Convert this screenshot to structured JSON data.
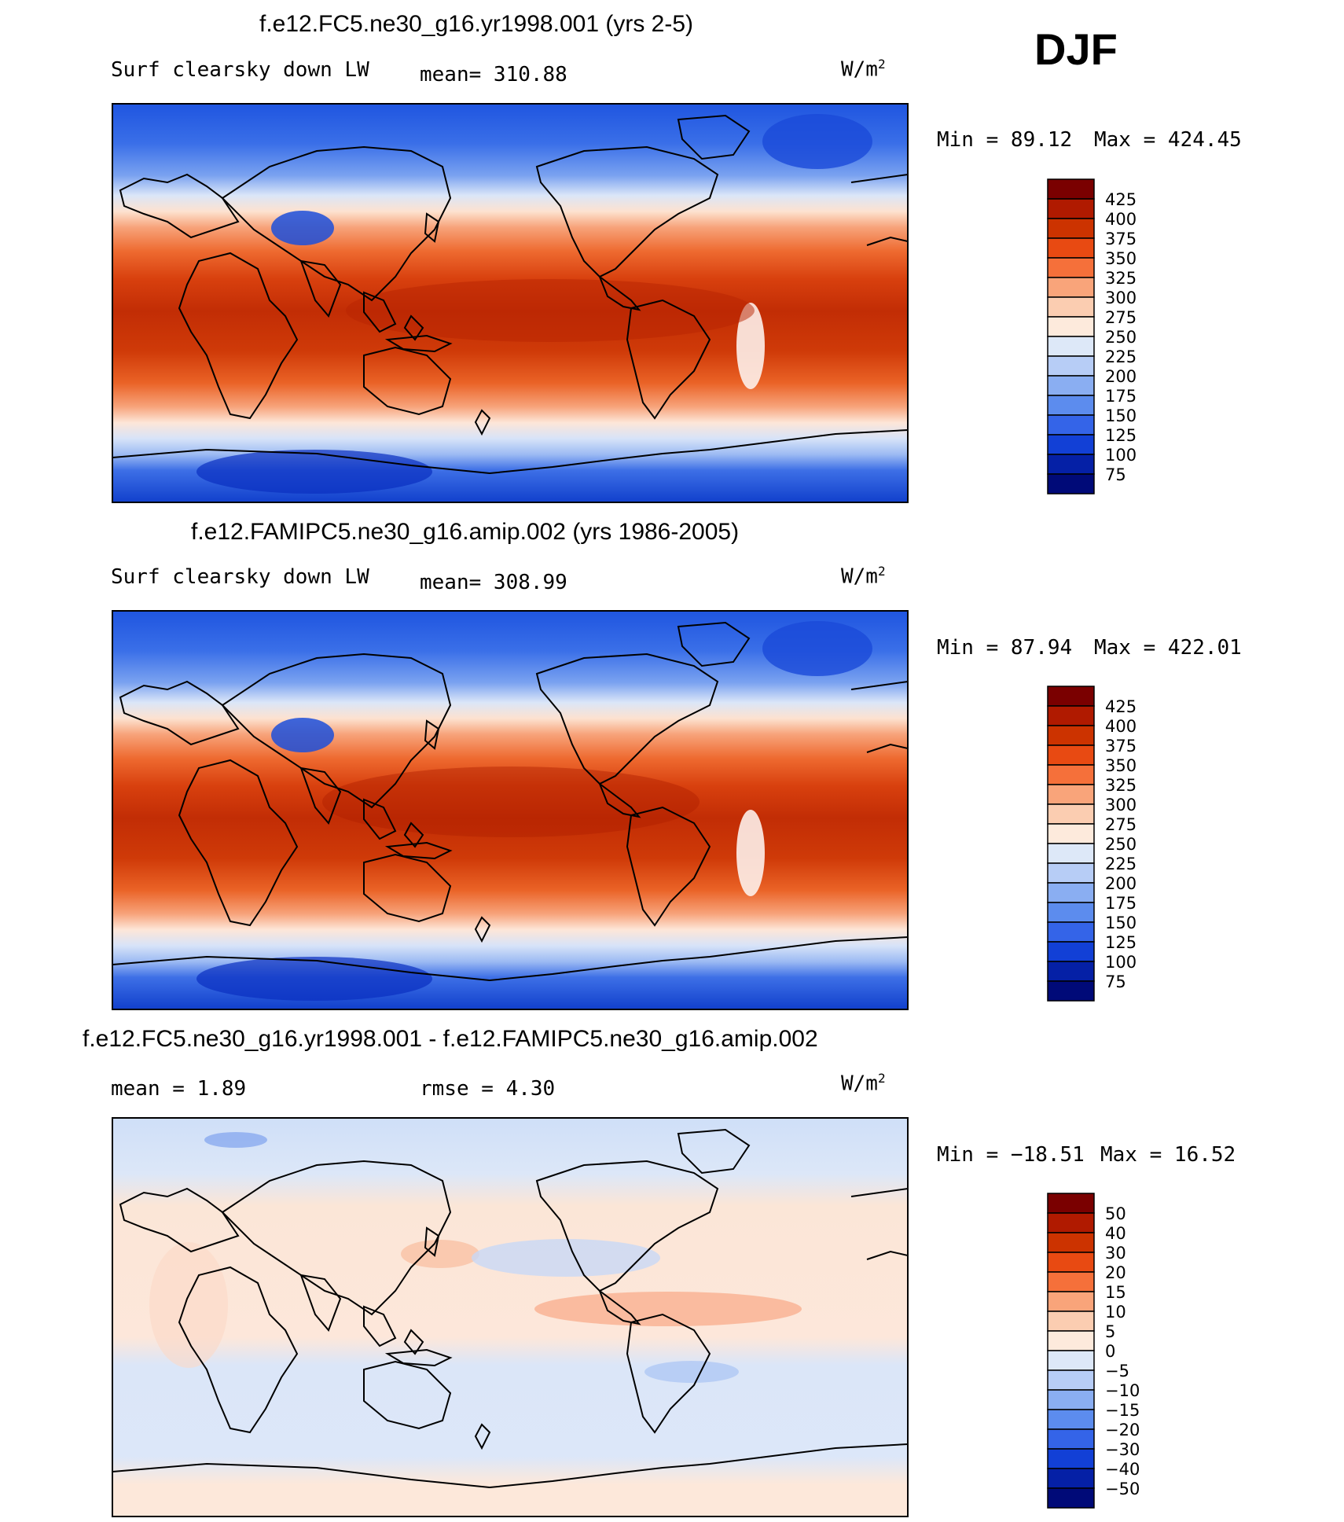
{
  "season": "DJF",
  "panels": [
    {
      "title": "f.e12.FC5.ne30_g16.yr1998.001 (yrs 2-5)",
      "field_label": "Surf clearsky down LW",
      "mean_text": "mean= 310.88",
      "units_base": "W/m",
      "units_exp": "2",
      "min_text": "Min =   89.12",
      "max_text": "Max = 424.45",
      "levels": [
        "425",
        "400",
        "375",
        "350",
        "325",
        "300",
        "275",
        "250",
        "225",
        "200",
        "175",
        "150",
        "125",
        "100",
        "75"
      ]
    },
    {
      "title": "f.e12.FAMIPC5.ne30_g16.amip.002 (yrs 1986-2005)",
      "field_label": "Surf clearsky down LW",
      "mean_text": "mean= 308.99",
      "units_base": "W/m",
      "units_exp": "2",
      "min_text": "Min =   87.94",
      "max_text": "Max = 422.01",
      "levels": [
        "425",
        "400",
        "375",
        "350",
        "325",
        "300",
        "275",
        "250",
        "225",
        "200",
        "175",
        "150",
        "125",
        "100",
        "75"
      ]
    },
    {
      "title": "f.e12.FC5.ne30_g16.yr1998.001 - f.e12.FAMIPC5.ne30_g16.amip.002",
      "mean_text": "mean =    1.89",
      "rmse_text": "rmse =    4.30",
      "units_base": "W/m",
      "units_exp": "2",
      "min_text": "Min = −18.51",
      "max_text": "Max =   16.52",
      "levels": [
        "50",
        "40",
        "30",
        "20",
        "15",
        "10",
        "5",
        "0",
        "−5",
        "−10",
        "−15",
        "−20",
        "−30",
        "−40",
        "−50"
      ]
    }
  ],
  "colorbar_colors": [
    "#7a0000",
    "#b01a00",
    "#cc3300",
    "#e84a12",
    "#f5703a",
    "#f9a47a",
    "#fbcdb1",
    "#fdeadc",
    "#dde8f8",
    "#b7cdf6",
    "#8aaef2",
    "#5c8cee",
    "#3464e8",
    "#1240d6",
    "#0520a6",
    "#000a78"
  ],
  "chart_data": [
    {
      "type": "heatmap",
      "title": "f.e12.FC5.ne30_g16.yr1998.001 (yrs 2-5)",
      "variable": "Surf clearsky down LW",
      "units": "W/m2",
      "mean": 310.88,
      "min": 89.12,
      "max": 424.45,
      "contour_levels": [
        75,
        100,
        125,
        150,
        175,
        200,
        225,
        250,
        275,
        300,
        325,
        350,
        375,
        400,
        425
      ]
    },
    {
      "type": "heatmap",
      "title": "f.e12.FAMIPC5.ne30_g16.amip.002 (yrs 1986-2005)",
      "variable": "Surf clearsky down LW",
      "units": "W/m2",
      "mean": 308.99,
      "min": 87.94,
      "max": 422.01,
      "contour_levels": [
        75,
        100,
        125,
        150,
        175,
        200,
        225,
        250,
        275,
        300,
        325,
        350,
        375,
        400,
        425
      ]
    },
    {
      "type": "heatmap",
      "title": "f.e12.FC5.ne30_g16.yr1998.001 - f.e12.FAMIPC5.ne30_g16.amip.002",
      "units": "W/m2",
      "mean": 1.89,
      "rmse": 4.3,
      "min": -18.51,
      "max": 16.52,
      "contour_levels": [
        -50,
        -40,
        -30,
        -20,
        -15,
        -10,
        -5,
        0,
        5,
        10,
        15,
        20,
        30,
        40,
        50
      ]
    }
  ]
}
